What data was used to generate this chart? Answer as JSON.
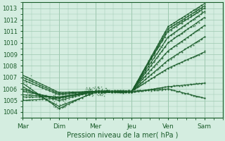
{
  "title": "",
  "xlabel": "Pression niveau de la mer( hPa )",
  "ylabel": "",
  "xlim": [
    0,
    5.5
  ],
  "ylim": [
    1003.5,
    1013.5
  ],
  "yticks": [
    1004,
    1005,
    1006,
    1007,
    1008,
    1009,
    1010,
    1011,
    1012,
    1013
  ],
  "xtick_labels": [
    "Mar",
    "Dim",
    "Mer",
    "Jeu",
    "Ven",
    "Sam"
  ],
  "xtick_positions": [
    0,
    1,
    2,
    3,
    4,
    5
  ],
  "background_color": "#d4ede0",
  "grid_color": "#9ec8b0",
  "line_color": "#1a5c2a",
  "marker_color": "#1a5c2a",
  "lines": [
    {
      "pts": [
        [
          0,
          1006.5
        ],
        [
          1,
          1004.3
        ],
        [
          2,
          1005.8
        ],
        [
          3,
          1005.8
        ],
        [
          4,
          1006.0
        ],
        [
          5,
          1005.2
        ]
      ]
    },
    {
      "pts": [
        [
          0,
          1006.2
        ],
        [
          1,
          1004.5
        ],
        [
          2,
          1005.7
        ],
        [
          3,
          1005.7
        ],
        [
          4,
          1006.2
        ],
        [
          5,
          1006.5
        ]
      ]
    },
    {
      "pts": [
        [
          0,
          1006.0
        ],
        [
          1,
          1005.0
        ],
        [
          2,
          1005.8
        ],
        [
          3,
          1005.8
        ],
        [
          4,
          1007.8
        ],
        [
          5,
          1009.2
        ]
      ]
    },
    {
      "pts": [
        [
          0,
          1005.8
        ],
        [
          1,
          1005.2
        ],
        [
          2,
          1005.8
        ],
        [
          3,
          1005.8
        ],
        [
          4,
          1008.5
        ],
        [
          5,
          1010.5
        ]
      ]
    },
    {
      "pts": [
        [
          0,
          1005.5
        ],
        [
          1,
          1005.3
        ],
        [
          2,
          1005.8
        ],
        [
          3,
          1005.8
        ],
        [
          4,
          1009.3
        ],
        [
          5,
          1011.5
        ]
      ]
    },
    {
      "pts": [
        [
          0,
          1005.3
        ],
        [
          1,
          1005.3
        ],
        [
          2,
          1005.8
        ],
        [
          3,
          1005.8
        ],
        [
          4,
          1010.0
        ],
        [
          5,
          1012.2
        ]
      ]
    },
    {
      "pts": [
        [
          0,
          1005.0
        ],
        [
          1,
          1005.2
        ],
        [
          2,
          1005.8
        ],
        [
          3,
          1005.8
        ],
        [
          4,
          1010.5
        ],
        [
          5,
          1012.7
        ]
      ]
    },
    {
      "pts": [
        [
          0,
          1006.8
        ],
        [
          1,
          1005.5
        ],
        [
          2,
          1005.8
        ],
        [
          3,
          1005.8
        ],
        [
          4,
          1011.0
        ],
        [
          5,
          1013.0
        ]
      ]
    },
    {
      "pts": [
        [
          0,
          1007.0
        ],
        [
          1,
          1005.6
        ],
        [
          2,
          1005.8
        ],
        [
          3,
          1005.8
        ],
        [
          4,
          1011.2
        ],
        [
          5,
          1013.2
        ]
      ]
    },
    {
      "pts": [
        [
          0,
          1007.2
        ],
        [
          1,
          1005.7
        ],
        [
          2,
          1005.8
        ],
        [
          3,
          1005.8
        ],
        [
          4,
          1011.4
        ],
        [
          5,
          1013.4
        ]
      ]
    }
  ]
}
